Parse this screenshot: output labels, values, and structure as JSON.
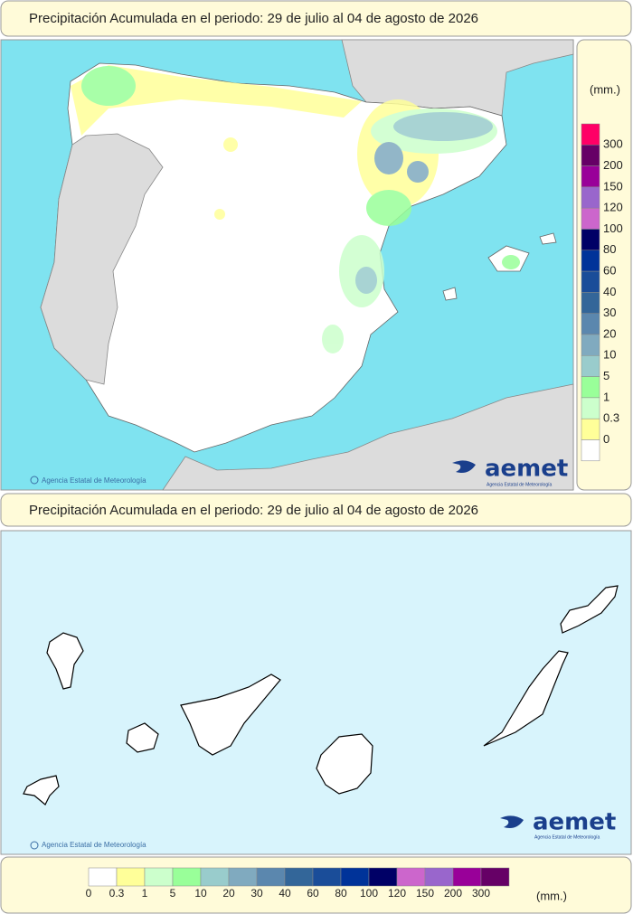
{
  "peninsula": {
    "title": "Precipitación Acumulada en el periodo: 29 de julio al 04 de agosto de 2026",
    "credit": "Agencia Estatal de Meteorología",
    "logo": "aemet",
    "logo_subtitle": "Agencia Estatal de Meteorología"
  },
  "canarias": {
    "title": "Precipitación Acumulada en el periodo: 29 de julio al 04 de agosto de 2026",
    "credit": "Agencia Estatal de Meteorología",
    "logo": "aemet",
    "logo_subtitle": "Agencia Estatal de Meteorología"
  },
  "legend": {
    "unit": "(mm.)",
    "levels": [
      0,
      0.3,
      1,
      5,
      10,
      20,
      30,
      40,
      60,
      80,
      100,
      120,
      150,
      200,
      300
    ],
    "colors": [
      "#ffffff",
      "#ffff99",
      "#ccffcc",
      "#99ff99",
      "#99cccc",
      "#80aabf",
      "#5b87ae",
      "#336699",
      "#1a4d99",
      "#003399",
      "#000066",
      "#cc66cc",
      "#9966cc",
      "#990099",
      "#660066",
      "#ff0066"
    ]
  }
}
